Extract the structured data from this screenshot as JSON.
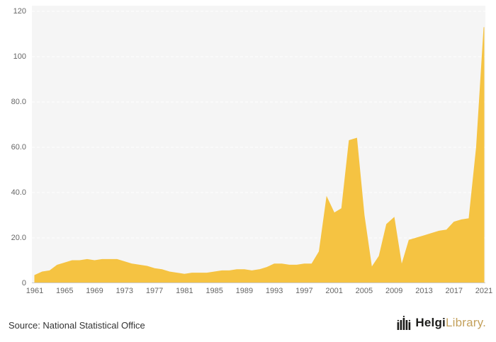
{
  "chart": {
    "area_color": "#F5C342",
    "plot_background": "#F5F5F5",
    "grid_color": "#FFFFFF",
    "axis_line_color": "#CCCCCC",
    "tick_label_color": "#666666"
  },
  "chart_data": {
    "type": "area",
    "title": "",
    "xlabel": "",
    "ylabel": "",
    "x": [
      1961,
      1962,
      1963,
      1964,
      1965,
      1966,
      1967,
      1968,
      1969,
      1970,
      1971,
      1972,
      1973,
      1974,
      1975,
      1976,
      1977,
      1978,
      1979,
      1980,
      1981,
      1982,
      1983,
      1984,
      1985,
      1986,
      1987,
      1988,
      1989,
      1990,
      1991,
      1992,
      1993,
      1994,
      1995,
      1996,
      1997,
      1998,
      1999,
      2000,
      2001,
      2002,
      2003,
      2004,
      2005,
      2006,
      2007,
      2008,
      2009,
      2010,
      2011,
      2012,
      2013,
      2014,
      2015,
      2016,
      2017,
      2018,
      2019,
      2020,
      2021
    ],
    "series": [
      {
        "name": "value",
        "values": [
          3.5,
          5,
          5.5,
          8,
          9,
          10,
          10,
          10.5,
          10,
          10.5,
          10.5,
          10.5,
          9.5,
          8.5,
          8,
          7.5,
          6.5,
          6,
          5,
          4.5,
          4,
          4.5,
          4.5,
          4.5,
          5,
          5.5,
          5.5,
          6,
          6,
          5.5,
          6,
          7,
          8.5,
          8.5,
          8,
          8,
          8.5,
          8.5,
          14,
          38,
          31,
          33,
          63,
          64,
          30,
          7,
          12,
          26,
          29,
          8,
          19,
          20,
          21,
          22,
          23,
          23.5,
          27,
          28,
          28.5,
          60,
          113
        ]
      }
    ],
    "xlim": [
      1961,
      2021
    ],
    "ylim": [
      0,
      120
    ],
    "x_tick_labels": [
      "1961",
      "1965",
      "1969",
      "1973",
      "1977",
      "1981",
      "1985",
      "1989",
      "1993",
      "1997",
      "2001",
      "2005",
      "2009",
      "2013",
      "2017",
      "2021"
    ],
    "y_ticks": [
      0,
      20,
      40,
      60,
      80,
      100,
      120
    ],
    "y_tick_labels": [
      "0",
      "20.0",
      "40.0",
      "60.0",
      "80.0",
      "100",
      "120"
    ],
    "grid": "horizontal-dashed",
    "legend": "none"
  },
  "footer": {
    "source": "Source: National Statistical Office",
    "logo": {
      "text_primary": "Helgi",
      "text_secondary": "Library",
      "suffix": ".",
      "color_primary": "#1D1D1B",
      "color_secondary": "#C4A15C"
    }
  }
}
